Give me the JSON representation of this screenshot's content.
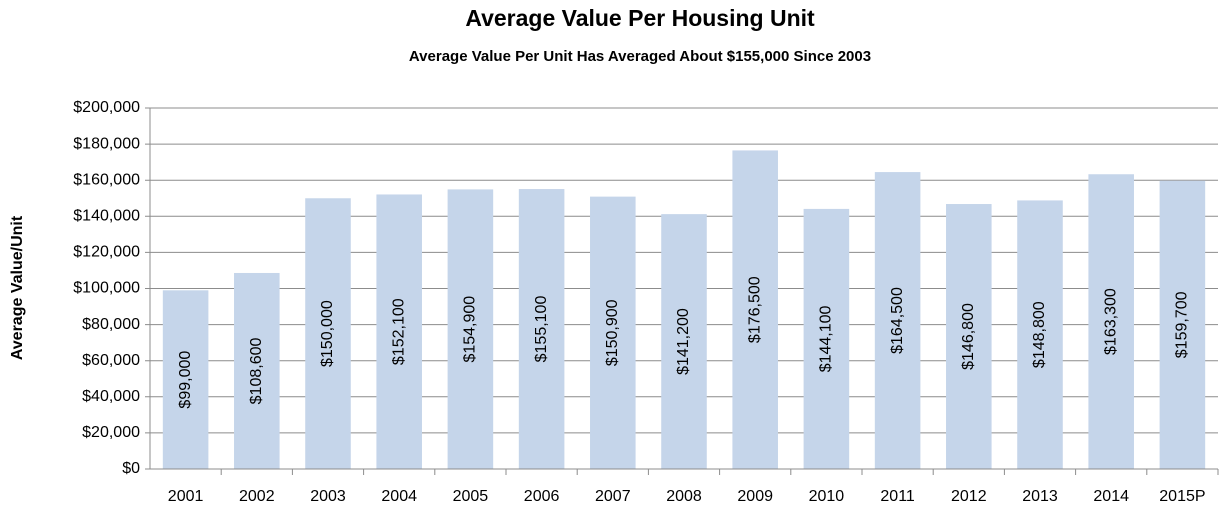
{
  "chart_data": {
    "type": "bar",
    "title": "Average Value Per Housing Unit",
    "subtitle": "Average Value Per Unit Has Averaged About $155,000 Since 2003",
    "y_axis_title": "Average Value/Unit",
    "categories": [
      "2001",
      "2002",
      "2003",
      "2004",
      "2005",
      "2006",
      "2007",
      "2008",
      "2009",
      "2010",
      "2011",
      "2012",
      "2013",
      "2014",
      "2015P"
    ],
    "values": [
      99000,
      108600,
      150000,
      152100,
      154900,
      155100,
      150900,
      141200,
      176500,
      144100,
      164500,
      146800,
      148800,
      163300,
      159700
    ],
    "value_labels": [
      "$99,000",
      "$108,600",
      "$150,000",
      "$152,100",
      "$154,900",
      "$155,100",
      "$150,900",
      "$141,200",
      "$176,500",
      "$144,100",
      "$164,500",
      "$146,800",
      "$148,800",
      "$163,300",
      "$159,700"
    ],
    "color": "#c5d5ea",
    "ylim": [
      0,
      200000
    ],
    "yticks": [
      {
        "value": 0,
        "label": "$0"
      },
      {
        "value": 20000,
        "label": "$20,000"
      },
      {
        "value": 40000,
        "label": "$40,000"
      },
      {
        "value": 60000,
        "label": "$60,000"
      },
      {
        "value": 80000,
        "label": "$80,000"
      },
      {
        "value": 100000,
        "label": "$100,000"
      },
      {
        "value": 120000,
        "label": "$120,000"
      },
      {
        "value": 140000,
        "label": "$140,000"
      },
      {
        "value": 160000,
        "label": "$160,000"
      },
      {
        "value": 180000,
        "label": "$180,000"
      },
      {
        "value": 200000,
        "label": "$200,000"
      }
    ],
    "grid": true
  }
}
